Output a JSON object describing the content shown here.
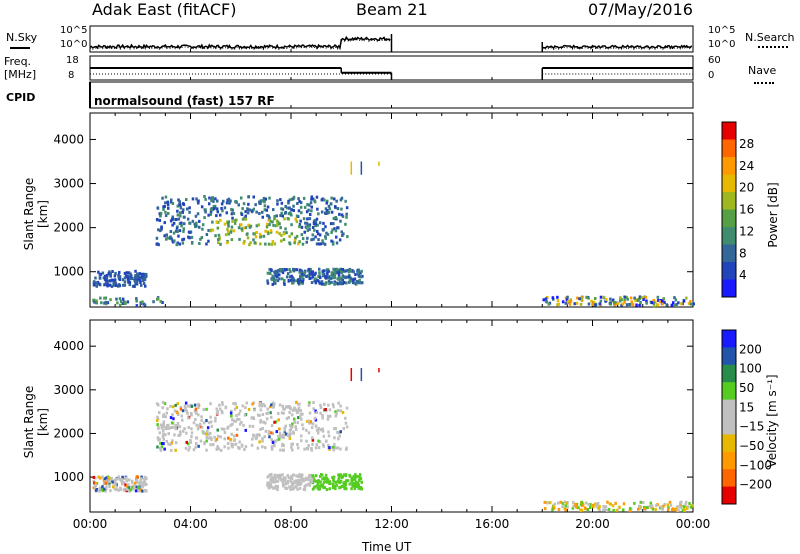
{
  "header": {
    "title": "Adak East (fitACF)",
    "beam": "Beam 21",
    "date": "07/May/2016"
  },
  "top_panels": {
    "nsky_label": "N.Sky",
    "nsky_ticks": [
      "10^5",
      "10^0"
    ],
    "nsearch_label": "N.Search",
    "nsearch_ticks": [
      "10^5",
      "10^0"
    ],
    "freq_label_line1": "Freq.",
    "freq_label_line2": "[MHz]",
    "freq_ticks": [
      "18",
      "8"
    ],
    "nave_label": "Nave",
    "nave_ticks": [
      "60",
      "0"
    ],
    "cpid_label": "CPID",
    "cpid_text": "normalsound (fast) 157 RF"
  },
  "colors": {
    "power": [
      "#1a1aff",
      "#2244bb",
      "#336699",
      "#3f8c6f",
      "#55a045",
      "#9fb820",
      "#e6b800",
      "#ff9900",
      "#ff6600",
      "#e60000"
    ],
    "velocity": [
      "#e60000",
      "#ff6600",
      "#ff9900",
      "#e6b800",
      "#c0c0c0",
      "#c0c0c0",
      "#55cc22",
      "#2a8c4a",
      "#2255aa",
      "#1a1aff"
    ]
  },
  "chart_data": {
    "type": "heatmap",
    "xlabel": "Time UT",
    "x_ticks": [
      "00:00",
      "04:00",
      "08:00",
      "12:00",
      "16:00",
      "20:00",
      "00:00"
    ],
    "xlim": [
      0,
      24
    ],
    "panels": [
      {
        "name": "power",
        "ylabel": "Slant Range [km]",
        "y_ticks": [
          1000,
          2000,
          3000,
          4000
        ],
        "ylim": [
          200,
          4600
        ],
        "colorbar_label": "Power [dB]",
        "colorbar_ticks": [
          "28",
          "24",
          "20",
          "16",
          "12",
          "8",
          "4"
        ]
      },
      {
        "name": "velocity",
        "ylabel": "Slant Range [km]",
        "y_ticks": [
          1000,
          2000,
          3000,
          4000
        ],
        "ylim": [
          200,
          4600
        ],
        "colorbar_label": "Velocity [m s⁻¹]",
        "colorbar_ticks": [
          "200",
          "100",
          "50",
          "15",
          "−15",
          "−50",
          "−100",
          "−200"
        ]
      }
    ],
    "freq_series": {
      "segments": [
        [
          0,
          10,
          13
        ],
        [
          10,
          12,
          11
        ],
        [
          18,
          24,
          13
        ]
      ]
    },
    "data_gap": [
      12,
      18
    ]
  }
}
